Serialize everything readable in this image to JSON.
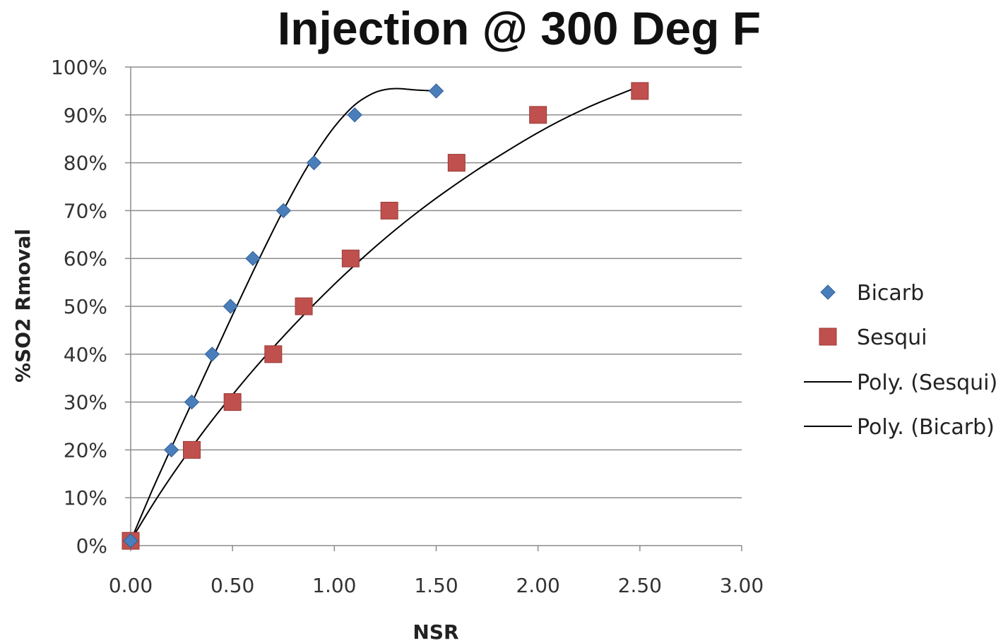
{
  "chart_data": {
    "type": "scatter",
    "title": "Injection @ 300 Deg F",
    "xlabel": "NSR",
    "ylabel": "%SO2 Rmoval",
    "xlim": [
      0,
      3
    ],
    "ylim": [
      0,
      100
    ],
    "x_ticks": [
      "0.00",
      "0.50",
      "1.00",
      "1.50",
      "2.00",
      "2.50",
      "3.00"
    ],
    "y_ticks": [
      "0%",
      "10%",
      "20%",
      "30%",
      "40%",
      "50%",
      "60%",
      "70%",
      "80%",
      "90%",
      "100%"
    ],
    "grid": "horizontal",
    "legend_position": "right",
    "series": [
      {
        "name": "Bicarb",
        "marker": "diamond",
        "color": "#4a7ebb",
        "x": [
          0.0,
          0.2,
          0.3,
          0.4,
          0.49,
          0.6,
          0.75,
          0.9,
          1.1,
          1.5
        ],
        "y": [
          1,
          20,
          30,
          40,
          50,
          60,
          70,
          80,
          90,
          95
        ]
      },
      {
        "name": "Sesqui",
        "marker": "square",
        "color": "#c0504d",
        "x": [
          0.0,
          0.3,
          0.5,
          0.7,
          0.85,
          1.08,
          1.27,
          1.6,
          2.0,
          2.5
        ],
        "y": [
          1,
          20,
          30,
          40,
          50,
          60,
          70,
          80,
          90,
          95
        ]
      }
    ],
    "trendlines": [
      {
        "name": "Poly. (Sesqui)",
        "color": "#000000",
        "x": [
          0.0,
          0.1,
          0.2,
          0.3,
          0.4,
          0.5,
          0.6,
          0.7,
          0.8,
          0.9,
          1.0,
          1.1,
          1.2,
          1.3,
          1.4,
          1.5,
          1.6,
          1.7,
          1.8,
          1.9,
          2.0,
          2.1,
          2.2,
          2.3,
          2.4,
          2.5
        ],
        "y": [
          1.0,
          8.0,
          14.5,
          20.5,
          26.2,
          31.5,
          36.6,
          41.4,
          46.0,
          50.4,
          54.6,
          58.6,
          62.4,
          66.0,
          69.4,
          72.6,
          75.6,
          78.5,
          81.2,
          83.8,
          86.3,
          88.6,
          90.7,
          92.6,
          94.3,
          96.0
        ]
      },
      {
        "name": "Poly. (Bicarb)",
        "color": "#000000",
        "x": [
          0.0,
          0.05,
          0.1,
          0.15,
          0.2,
          0.25,
          0.3,
          0.35,
          0.4,
          0.45,
          0.5,
          0.55,
          0.6,
          0.65,
          0.7,
          0.75,
          0.8,
          0.85,
          0.9,
          0.95,
          1.0,
          1.05,
          1.1,
          1.15,
          1.2,
          1.25,
          1.3,
          1.35,
          1.4,
          1.45,
          1.5
        ],
        "y": [
          1.0,
          6.0,
          11.0,
          15.8,
          20.5,
          25.2,
          29.8,
          34.4,
          39.0,
          43.6,
          48.2,
          52.7,
          57.2,
          61.6,
          65.9,
          70.1,
          74.1,
          77.9,
          81.4,
          84.6,
          87.5,
          90.0,
          92.1,
          93.6,
          94.7,
          95.3,
          95.5,
          95.4,
          95.2,
          95.1,
          95.0
        ]
      }
    ],
    "legend": [
      "Bicarb",
      "Sesqui",
      "Poly. (Sesqui)",
      "Poly. (Bicarb)"
    ]
  }
}
